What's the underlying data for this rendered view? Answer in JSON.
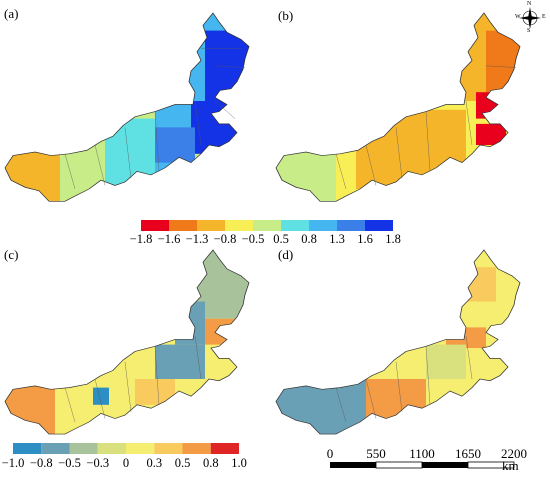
{
  "panels": {
    "a": {
      "label": "(a)"
    },
    "b": {
      "label": "(b)"
    },
    "c": {
      "label": "(c)"
    },
    "d": {
      "label": "(d)"
    }
  },
  "legend_top": {
    "labels": [
      "−1.8",
      "−1.6",
      "−1.3",
      "−0.8",
      "−0.5",
      "0.5",
      "0.8",
      "1.3",
      "1.6",
      "1.8"
    ],
    "colors": [
      "#e8001c",
      "#f07a1a",
      "#f5b52a",
      "#f8ee55",
      "#c8ec87",
      "#5fe1e4",
      "#45b6f0",
      "#3b7fe8",
      "#1432e6"
    ]
  },
  "legend_bottom": {
    "labels": [
      "−1.0",
      "−0.8",
      "−0.5",
      "−0.3",
      "0",
      "0.3",
      "0.5",
      "0.8",
      "1.0"
    ],
    "colors": [
      "#2c8ec3",
      "#6aa0b6",
      "#a8c29b",
      "#d9e07e",
      "#f6ee70",
      "#f9cb5e",
      "#f39b45",
      "#e02525"
    ]
  },
  "scale_bar": {
    "ticks": [
      "0",
      "550",
      "1100",
      "1650",
      "2200"
    ],
    "unit": "km"
  },
  "compass": {
    "n": "N",
    "s": "S",
    "e": "E",
    "w": "W"
  },
  "colors": {
    "boundary": "#555555",
    "outline": "#333333"
  }
}
